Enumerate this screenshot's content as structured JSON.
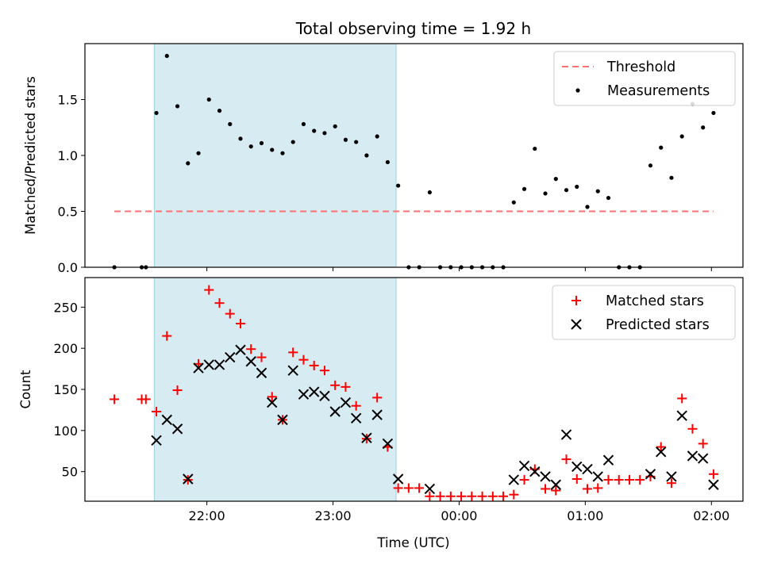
{
  "chart_data": {
    "title": "Total observing time = 1.92 h",
    "xlabel": "Time (UTC)",
    "x_ticks": [
      "22:00",
      "23:00",
      "00:00",
      "01:00",
      "02:00"
    ],
    "x_tick_minutes": [
      0,
      60,
      120,
      180,
      240
    ],
    "xlim_minutes": [
      -58,
      255
    ],
    "shaded_span_minutes": [
      -25,
      90
    ],
    "shade_color": "#add8e6",
    "subplots": [
      {
        "type": "scatter",
        "ylabel": "Matched/Predicted stars",
        "ylim": [
          0,
          2.0
        ],
        "yticks": [
          0.0,
          0.5,
          1.0,
          1.5
        ],
        "ytick_labels": [
          "0.0",
          "0.5",
          "1.0",
          "1.5"
        ],
        "grid": false,
        "legend_position": "top-right",
        "threshold": {
          "name": "Threshold",
          "y": 0.5,
          "x_range_minutes": [
            -44,
            241
          ],
          "color": "#ff7070",
          "style": "dashed"
        },
        "series": [
          {
            "name": "Measurements",
            "color": "#000000",
            "marker": "dot",
            "points": [
              [
                -44,
                0.0
              ],
              [
                -31,
                0.0
              ],
              [
                -29,
                0.0
              ],
              [
                -24,
                1.38
              ],
              [
                -19,
                1.89
              ],
              [
                -14,
                1.44
              ],
              [
                -9,
                0.93
              ],
              [
                -4,
                1.02
              ],
              [
                1,
                1.5
              ],
              [
                6,
                1.4
              ],
              [
                11,
                1.28
              ],
              [
                16,
                1.15
              ],
              [
                21,
                1.08
              ],
              [
                26,
                1.11
              ],
              [
                31,
                1.05
              ],
              [
                36,
                1.02
              ],
              [
                41,
                1.12
              ],
              [
                46,
                1.28
              ],
              [
                51,
                1.22
              ],
              [
                56,
                1.2
              ],
              [
                61,
                1.26
              ],
              [
                66,
                1.14
              ],
              [
                71,
                1.12
              ],
              [
                76,
                1.0
              ],
              [
                81,
                1.17
              ],
              [
                86,
                0.94
              ],
              [
                91,
                0.73
              ],
              [
                96,
                0.0
              ],
              [
                101,
                0.0
              ],
              [
                106,
                0.67
              ],
              [
                111,
                0.0
              ],
              [
                116,
                0.0
              ],
              [
                121,
                0.0
              ],
              [
                126,
                0.0
              ],
              [
                131,
                0.0
              ],
              [
                136,
                0.0
              ],
              [
                141,
                0.0
              ],
              [
                146,
                0.58
              ],
              [
                151,
                0.7
              ],
              [
                156,
                1.06
              ],
              [
                161,
                0.66
              ],
              [
                166,
                0.79
              ],
              [
                171,
                0.69
              ],
              [
                176,
                0.72
              ],
              [
                181,
                0.54
              ],
              [
                186,
                0.68
              ],
              [
                191,
                0.62
              ],
              [
                196,
                0.0
              ],
              [
                201,
                0.0
              ],
              [
                206,
                0.0
              ],
              [
                211,
                0.91
              ],
              [
                216,
                1.07
              ],
              [
                221,
                0.8
              ],
              [
                226,
                1.17
              ],
              [
                231,
                1.46
              ],
              [
                236,
                1.25
              ],
              [
                241,
                1.38
              ]
            ]
          }
        ]
      },
      {
        "type": "scatter",
        "ylabel": "Count",
        "ylim": [
          14,
          286
        ],
        "yticks": [
          50,
          100,
          150,
          200,
          250
        ],
        "ytick_labels": [
          "50",
          "100",
          "150",
          "200",
          "250"
        ],
        "grid": false,
        "legend_position": "top-right",
        "series": [
          {
            "name": "Matched stars",
            "color": "#ff0000",
            "marker": "plus",
            "points": [
              [
                -44,
                138
              ],
              [
                -31,
                138
              ],
              [
                -29,
                138
              ],
              [
                -24,
                123
              ],
              [
                -19,
                215
              ],
              [
                -14,
                149
              ],
              [
                -9,
                40
              ],
              [
                -4,
                181
              ],
              [
                1,
                271
              ],
              [
                6,
                255
              ],
              [
                11,
                242
              ],
              [
                16,
                230
              ],
              [
                21,
                199
              ],
              [
                26,
                189
              ],
              [
                31,
                141
              ],
              [
                36,
                113
              ],
              [
                41,
                195
              ],
              [
                46,
                186
              ],
              [
                51,
                179
              ],
              [
                56,
                173
              ],
              [
                61,
                155
              ],
              [
                66,
                153
              ],
              [
                71,
                130
              ],
              [
                76,
                90
              ],
              [
                81,
                140
              ],
              [
                86,
                80
              ],
              [
                91,
                30
              ],
              [
                96,
                30
              ],
              [
                101,
                30
              ],
              [
                106,
                20
              ],
              [
                111,
                20
              ],
              [
                116,
                20
              ],
              [
                121,
                20
              ],
              [
                126,
                20
              ],
              [
                131,
                20
              ],
              [
                136,
                20
              ],
              [
                141,
                20
              ],
              [
                146,
                22
              ],
              [
                151,
                40
              ],
              [
                156,
                53
              ],
              [
                161,
                29
              ],
              [
                166,
                27
              ],
              [
                171,
                65
              ],
              [
                176,
                41
              ],
              [
                181,
                29
              ],
              [
                186,
                30
              ],
              [
                191,
                40
              ],
              [
                196,
                40
              ],
              [
                201,
                40
              ],
              [
                206,
                40
              ],
              [
                211,
                44
              ],
              [
                216,
                80
              ],
              [
                221,
                36
              ],
              [
                226,
                139
              ],
              [
                231,
                102
              ],
              [
                236,
                84
              ],
              [
                241,
                47
              ]
            ]
          },
          {
            "name": "Predicted stars",
            "color": "#000000",
            "marker": "x",
            "points": [
              [
                -24,
                88
              ],
              [
                -19,
                113
              ],
              [
                -14,
                102
              ],
              [
                -9,
                41
              ],
              [
                -4,
                176
              ],
              [
                1,
                180
              ],
              [
                6,
                180
              ],
              [
                11,
                189
              ],
              [
                16,
                198
              ],
              [
                21,
                184
              ],
              [
                26,
                170
              ],
              [
                31,
                134
              ],
              [
                36,
                113
              ],
              [
                41,
                173
              ],
              [
                46,
                144
              ],
              [
                51,
                147
              ],
              [
                56,
                142
              ],
              [
                61,
                123
              ],
              [
                66,
                134
              ],
              [
                71,
                115
              ],
              [
                76,
                91
              ],
              [
                81,
                119
              ],
              [
                86,
                84
              ],
              [
                91,
                41
              ],
              [
                106,
                29
              ],
              [
                146,
                40
              ],
              [
                151,
                57
              ],
              [
                156,
                50
              ],
              [
                161,
                44
              ],
              [
                166,
                34
              ],
              [
                171,
                95
              ],
              [
                176,
                56
              ],
              [
                181,
                53
              ],
              [
                186,
                44
              ],
              [
                191,
                64
              ],
              [
                211,
                47
              ],
              [
                216,
                74
              ],
              [
                221,
                44
              ],
              [
                226,
                118
              ],
              [
                231,
                69
              ],
              [
                236,
                66
              ],
              [
                241,
                34
              ]
            ]
          }
        ]
      }
    ]
  }
}
